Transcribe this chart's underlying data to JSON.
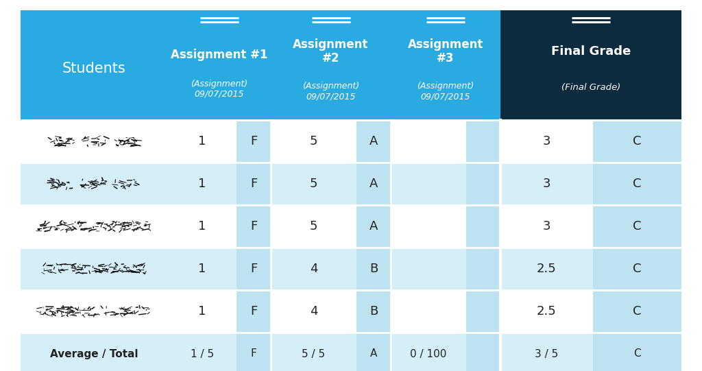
{
  "header_bg_colors": {
    "students": "#29ABE2",
    "assignment1": "#29ABE2",
    "assignment2": "#29ABE2",
    "assignment3": "#29ABE2",
    "final_grade": "#0D2B3E"
  },
  "row_colors": {
    "even": "#FFFFFF",
    "odd": "#D6EEF8"
  },
  "grade_col_color": "#BEE3F0",
  "data_rows": [
    {
      "a1": "1",
      "a1g": "F",
      "a2": "5",
      "a2g": "A",
      "a3": "",
      "a3g": "",
      "fg": "3",
      "fgg": "C"
    },
    {
      "a1": "1",
      "a1g": "F",
      "a2": "5",
      "a2g": "A",
      "a3": "",
      "a3g": "",
      "fg": "3",
      "fgg": "C"
    },
    {
      "a1": "1",
      "a1g": "F",
      "a2": "5",
      "a2g": "A",
      "a3": "",
      "a3g": "",
      "fg": "3",
      "fgg": "C"
    },
    {
      "a1": "1",
      "a1g": "F",
      "a2": "4",
      "a2g": "B",
      "a3": "",
      "a3g": "",
      "fg": "2.5",
      "fgg": "C"
    },
    {
      "a1": "1",
      "a1g": "F",
      "a2": "4",
      "a2g": "B",
      "a3": "",
      "a3g": "",
      "fg": "2.5",
      "fgg": "C"
    }
  ],
  "average_row": {
    "label": "Average / Total",
    "a1": "1 / 5",
    "a1g": "F",
    "a2": "5 / 5",
    "a2g": "A",
    "a3": "0 / 100",
    "a3g": "",
    "fg": "3 / 5",
    "fgg": "C"
  },
  "header_text_color": "#FFFFFF",
  "data_text_color": "#222222",
  "double_line_color": "#FFFFFF",
  "bg_color": "#FFFFFF"
}
